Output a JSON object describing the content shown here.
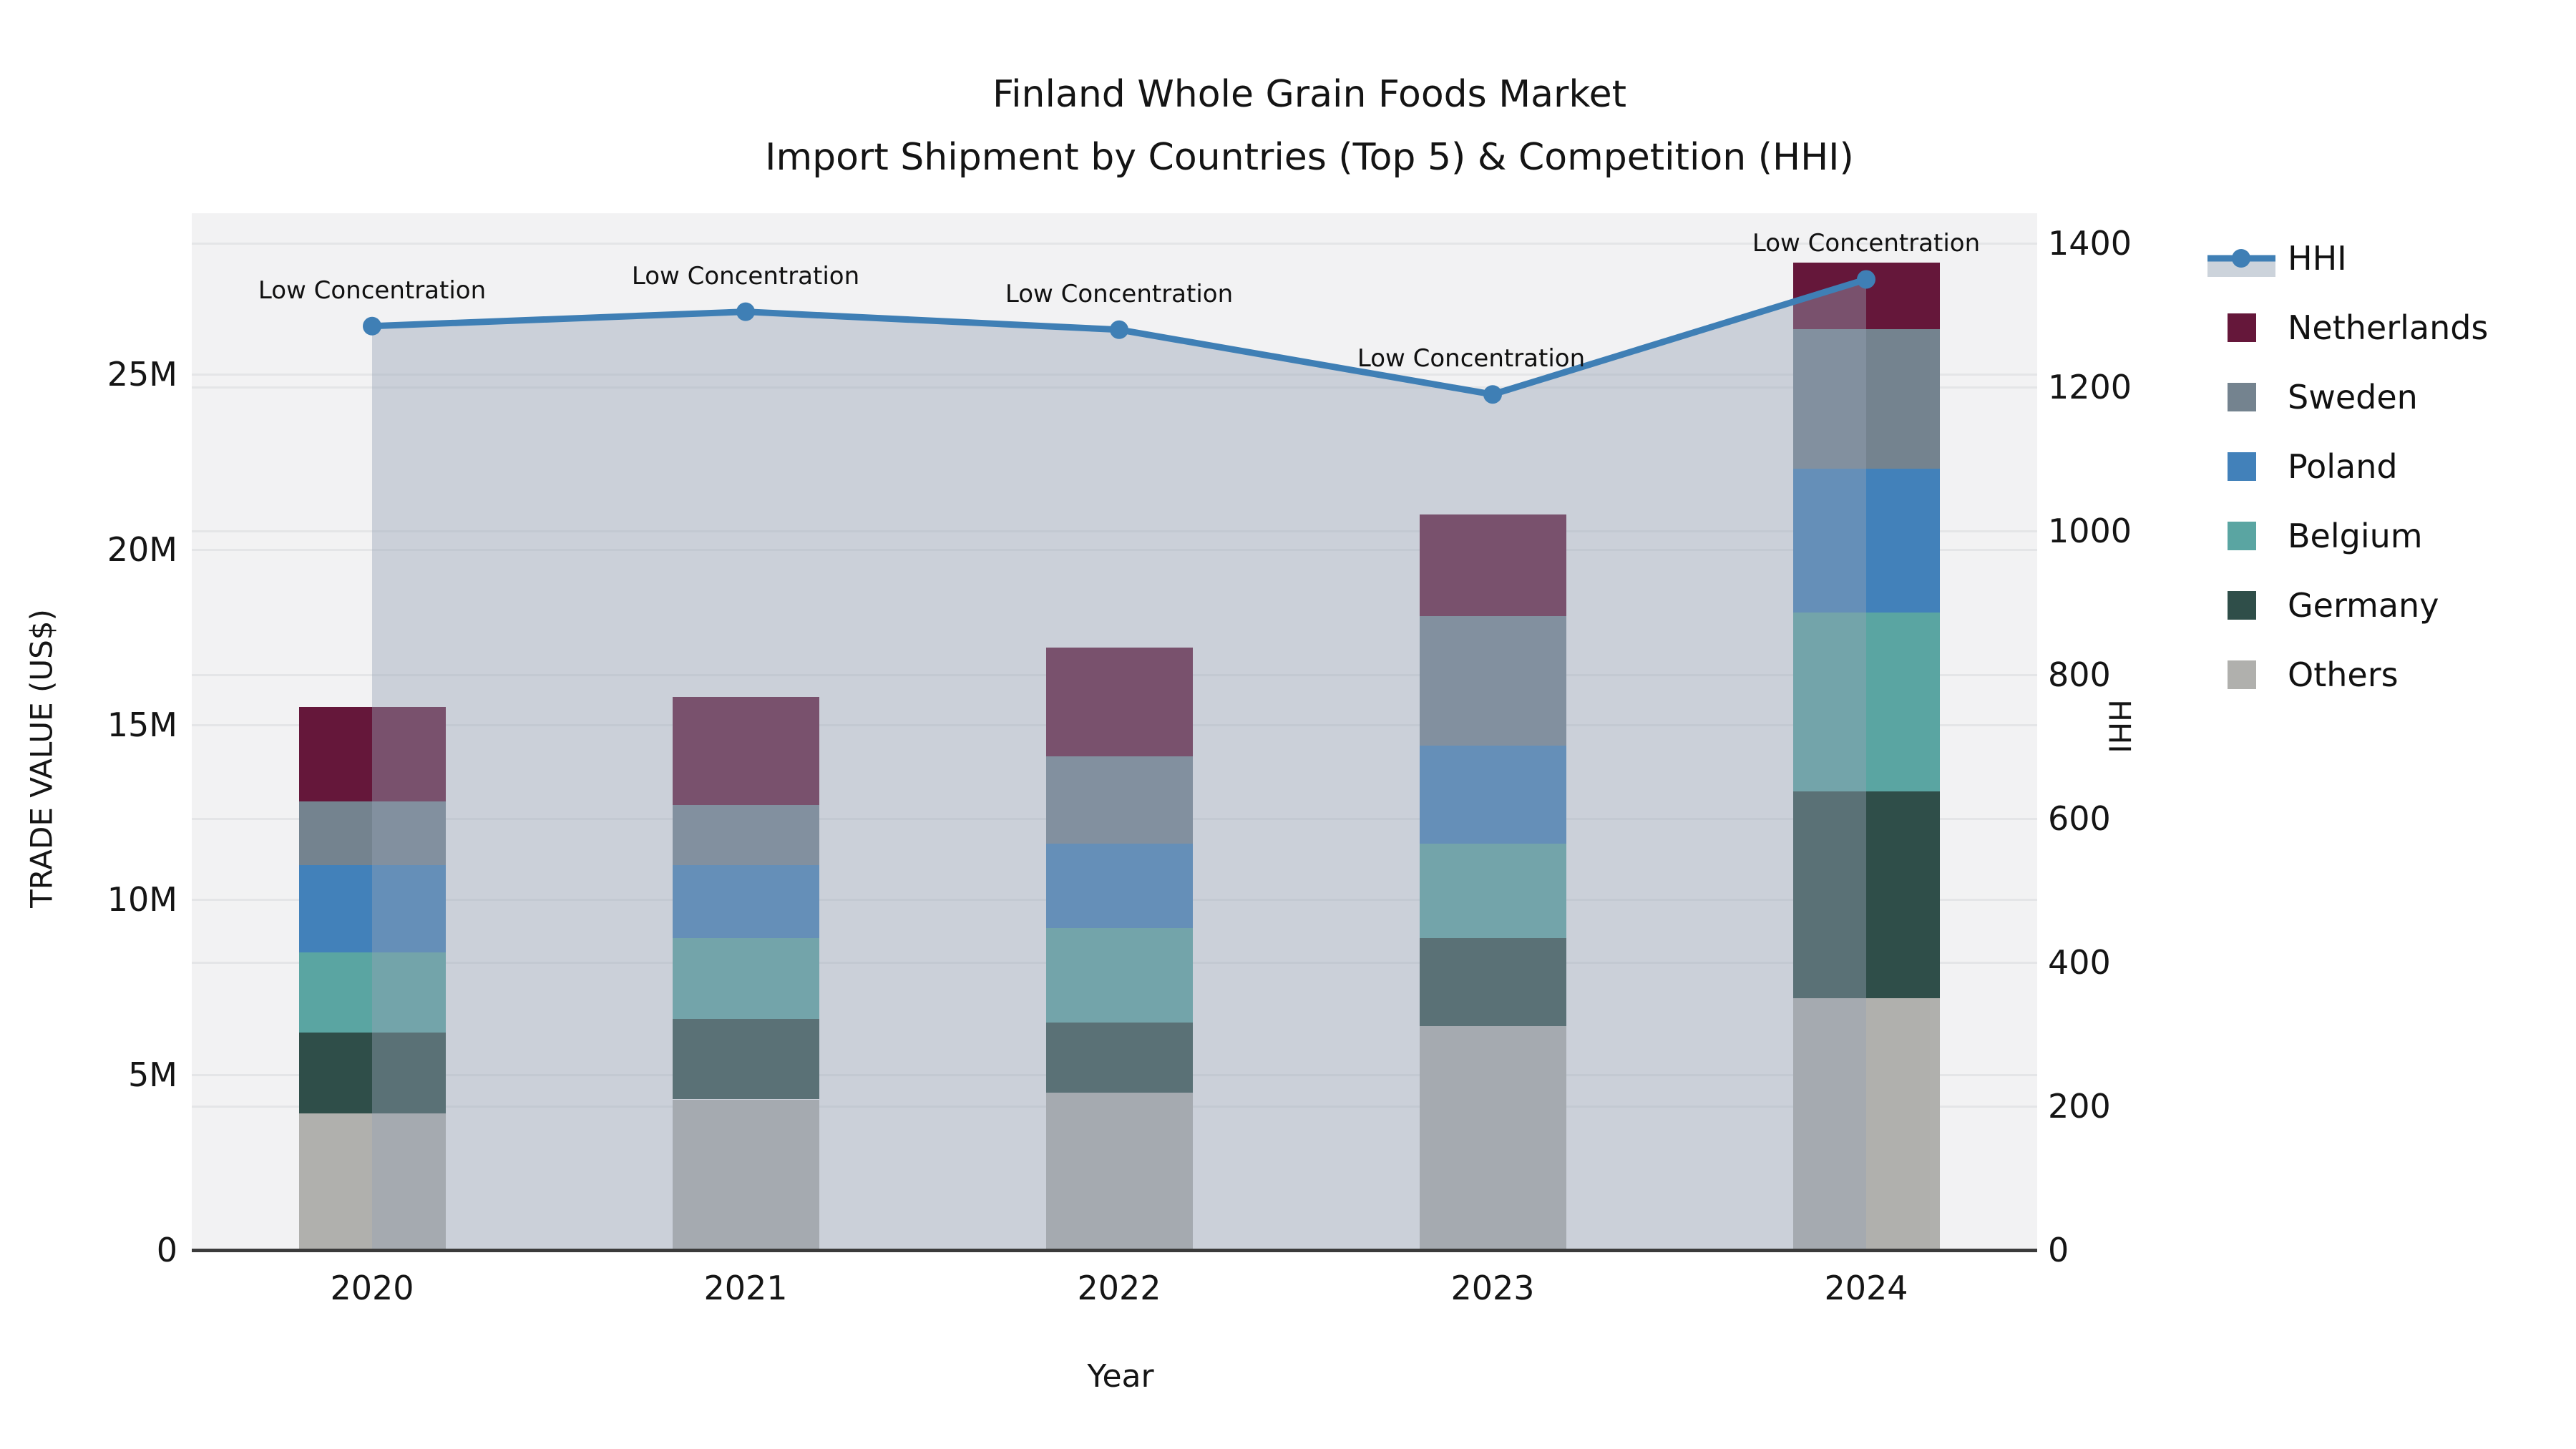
{
  "chart_data": {
    "type": "bar+line",
    "title_lines": [
      "Finland Whole Grain Foods Market",
      "Import Shipment by Countries (Top 5) & Competition (HHI)"
    ],
    "xlabel": "Year",
    "ylabel_left": "TRADE VALUE (US$)",
    "ylabel_right": "HHI",
    "categories": [
      "2020",
      "2021",
      "2022",
      "2023",
      "2024"
    ],
    "values_unit": "million US$",
    "series": [
      {
        "key": "others",
        "name": "Others",
        "values": [
          3.9,
          4.3,
          4.5,
          6.4,
          7.2
        ]
      },
      {
        "key": "germany",
        "name": "Germany",
        "values": [
          2.3,
          2.3,
          2.0,
          2.5,
          5.9
        ]
      },
      {
        "key": "belgium",
        "name": "Belgium",
        "values": [
          2.3,
          2.3,
          2.7,
          2.7,
          5.1
        ]
      },
      {
        "key": "poland",
        "name": "Poland",
        "values": [
          2.5,
          2.1,
          2.4,
          2.8,
          4.1
        ]
      },
      {
        "key": "sweden",
        "name": "Sweden",
        "values": [
          1.8,
          1.7,
          2.5,
          3.7,
          4.0
        ]
      },
      {
        "key": "netherlands",
        "name": "Netherlands",
        "values": [
          2.7,
          3.1,
          3.1,
          2.9,
          1.9
        ]
      }
    ],
    "hhi": {
      "name": "HHI",
      "values": [
        1285,
        1305,
        1280,
        1190,
        1350
      ],
      "annotations": [
        "Low Concentration",
        "Low Concentration",
        "Low Concentration",
        "Low Concentration",
        "Low Concentration"
      ]
    },
    "left_axis": {
      "ticks": [
        {
          "label": "0",
          "value": 0
        },
        {
          "label": "5M",
          "value": 5
        },
        {
          "label": "10M",
          "value": 10
        },
        {
          "label": "15M",
          "value": 15
        },
        {
          "label": "20M",
          "value": 20
        },
        {
          "label": "25M",
          "value": 25
        }
      ],
      "range_max": 29.6
    },
    "right_axis": {
      "ticks": [
        {
          "label": "0",
          "value": 0
        },
        {
          "label": "200",
          "value": 200
        },
        {
          "label": "400",
          "value": 400
        },
        {
          "label": "600",
          "value": 600
        },
        {
          "label": "800",
          "value": 800
        },
        {
          "label": "1000",
          "value": 1000
        },
        {
          "label": "1200",
          "value": 1200
        },
        {
          "label": "1400",
          "value": 1400
        }
      ],
      "range_max": 1442
    },
    "legend": [
      {
        "key": "hhi",
        "label": "HHI",
        "type": "line"
      },
      {
        "key": "netherlands",
        "label": "Netherlands",
        "type": "patch"
      },
      {
        "key": "sweden",
        "label": "Sweden",
        "type": "patch"
      },
      {
        "key": "poland",
        "label": "Poland",
        "type": "patch"
      },
      {
        "key": "belgium",
        "label": "Belgium",
        "type": "patch"
      },
      {
        "key": "germany",
        "label": "Germany",
        "type": "patch"
      },
      {
        "key": "others",
        "label": "Others",
        "type": "patch"
      }
    ],
    "colors": {
      "netherlands": "#65173a",
      "sweden": "#74838f",
      "poland": "#4281ba",
      "belgium": "#5aa5a2",
      "germany": "#2f4e49",
      "others": "#b0b0ad",
      "hhi_line": "#3f7fb5",
      "band_fill": "rgba(150,162,180,0.42)",
      "legend_band": "#ccd3db",
      "plot_bg": "#f2f2f3",
      "grid": "#e4e5e7",
      "spine": "#3b3b3b"
    }
  }
}
